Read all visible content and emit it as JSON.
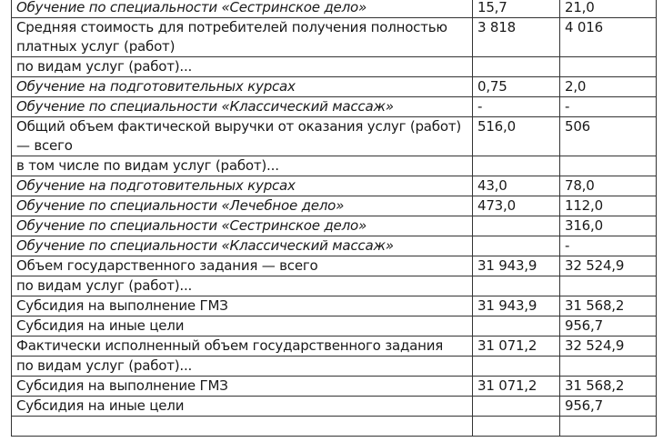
{
  "rows": [
    {
      "label": "Обучение по специальности «Сестринское дело»",
      "v1": "15,7",
      "v2": "21,0",
      "italic": true
    },
    {
      "label": "Средняя стоимость для потребителей получения полностью платных услуг (работ)",
      "v1": "3 818",
      "v2": "4 016",
      "italic": false
    },
    {
      "label": "по видам услуг (работ)...",
      "v1": "",
      "v2": "",
      "italic": false
    },
    {
      "label": "Обучение на подготовительных курсах",
      "v1": "0,75",
      "v2": "2,0",
      "italic": true
    },
    {
      "label": "Обучение по специальности «Классический массаж»",
      "v1": "-",
      "v2": "-",
      "italic": true
    },
    {
      "label": "Общий объем фактической выручки от оказания услуг (работ) — всего",
      "v1": "516,0",
      "v2": "506",
      "italic": false
    },
    {
      "label": "в том числе по видам услуг (работ)...",
      "v1": "",
      "v2": "",
      "italic": false
    },
    {
      "label": "Обучение на подготовительных курсах",
      "v1": "43,0",
      "v2": "78,0",
      "italic": true
    },
    {
      "label": "Обучение по специальности «Лечебное дело»",
      "v1": "473,0",
      "v2": "112,0",
      "italic": true
    },
    {
      "label": "Обучение по специальности «Сестринское дело»",
      "v1": "",
      "v2": "316,0",
      "italic": true
    },
    {
      "label": "Обучение по специальности «Классический массаж»",
      "v1": "",
      "v2": "-",
      "italic": true
    },
    {
      "label": "Объем государственного задания — всего",
      "v1": "31 943,9",
      "v2": "32 524,9",
      "italic": false
    },
    {
      "label": "по видам услуг (работ)...",
      "v1": "",
      "v2": "",
      "italic": false
    },
    {
      "label": "Субсидия на выполнение ГМЗ",
      "v1": "31 943,9",
      "v2": "31 568,2",
      "italic": false
    },
    {
      "label": "Субсидия на иные цели",
      "v1": "",
      "v2": "956,7",
      "italic": false
    },
    {
      "label": "Фактически исполненный объем государственного задания",
      "v1": "31 071,2",
      "v2": "32 524,9",
      "italic": false
    },
    {
      "label": "по видам услуг (работ)...",
      "v1": "",
      "v2": "",
      "italic": false
    },
    {
      "label": "Субсидия на выполнение ГМЗ",
      "v1": "31 071,2",
      "v2": "31 568,2",
      "italic": false
    },
    {
      "label": "Субсидия на иные цели",
      "v1": "",
      "v2": "956,7",
      "italic": false
    }
  ]
}
